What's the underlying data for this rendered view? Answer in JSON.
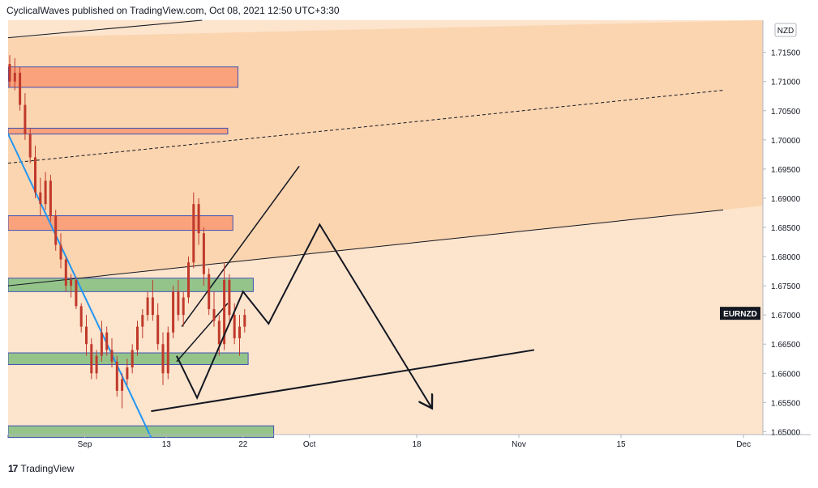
{
  "header": {
    "publisher_text": "CyclicalWaves published on TradingView.com, Oct 08, 2021 12:50 UTC+3:30"
  },
  "footer": {
    "logo": "17",
    "brand": "TradingView"
  },
  "chart_data": {
    "type": "candlestick",
    "symbol_badge": "EURNZD",
    "currency_badge": "NZD",
    "y_ticks": [
      "1.71500",
      "1.71000",
      "1.70500",
      "1.70000",
      "1.69500",
      "1.69000",
      "1.68500",
      "1.68000",
      "1.67500",
      "1.67000",
      "1.66500",
      "1.66000",
      "1.65500",
      "1.65000"
    ],
    "x_ticks": [
      "Sep",
      "13",
      "22",
      "Oct",
      "18",
      "Nov",
      "15",
      "Dec"
    ],
    "ylim": [
      1.6495,
      1.7205
    ],
    "colors": {
      "panel_bg": "#fde4cc",
      "upper_channel_bg": "#fbd3ad",
      "resistance_zone": "#f9a27c",
      "support_zone": "#95c48a",
      "zone_border": "#3f51b5",
      "candle": "#c0392b",
      "trendline_blue": "#2196f3",
      "line": "#131722"
    },
    "resistance_zones": [
      {
        "start_day": 0,
        "end_day": 45,
        "low": 1.709,
        "high": 1.7125
      },
      {
        "start_day": 0,
        "end_day": 43,
        "low": 1.701,
        "high": 1.702
      },
      {
        "start_day": 0,
        "end_day": 44,
        "low": 1.6845,
        "high": 1.687
      }
    ],
    "support_zones": [
      {
        "start_day": 0,
        "end_day": 48,
        "low": 1.674,
        "high": 1.6763
      },
      {
        "start_day": 0,
        "end_day": 47,
        "low": 1.6615,
        "high": 1.6635
      },
      {
        "start_day": 0,
        "end_day": 52,
        "low": 1.649,
        "high": 1.651
      }
    ],
    "candles": [
      [
        1.713,
        1.7145,
        1.709,
        1.71
      ],
      [
        1.71,
        1.714,
        1.7085,
        1.7115
      ],
      [
        1.7115,
        1.7125,
        1.705,
        1.706
      ],
      [
        1.706,
        1.708,
        1.7,
        1.701
      ],
      [
        1.701,
        1.702,
        1.696,
        1.697
      ],
      [
        1.697,
        1.699,
        1.69,
        1.691
      ],
      [
        1.691,
        1.6935,
        1.687,
        1.689
      ],
      [
        1.689,
        1.6945,
        1.688,
        1.693
      ],
      [
        1.693,
        1.694,
        1.686,
        1.687
      ],
      [
        1.687,
        1.688,
        1.681,
        1.682
      ],
      [
        1.682,
        1.684,
        1.678,
        1.6795
      ],
      [
        1.6795,
        1.68,
        1.674,
        1.675
      ],
      [
        1.675,
        1.677,
        1.673,
        1.676
      ],
      [
        1.676,
        1.6765,
        1.671,
        1.6715
      ],
      [
        1.6715,
        1.672,
        1.667,
        1.668
      ],
      [
        1.668,
        1.67,
        1.663,
        1.665
      ],
      [
        1.665,
        1.666,
        1.659,
        1.66
      ],
      [
        1.66,
        1.664,
        1.659,
        1.663
      ],
      [
        1.663,
        1.669,
        1.662,
        1.667
      ],
      [
        1.667,
        1.668,
        1.663,
        1.664
      ],
      [
        1.664,
        1.666,
        1.661,
        1.662
      ],
      [
        1.662,
        1.663,
        1.656,
        1.657
      ],
      [
        1.657,
        1.66,
        1.654,
        1.659
      ],
      [
        1.659,
        1.6625,
        1.658,
        1.661
      ],
      [
        1.661,
        1.665,
        1.66,
        1.664
      ],
      [
        1.664,
        1.669,
        1.663,
        1.668
      ],
      [
        1.668,
        1.671,
        1.666,
        1.67
      ],
      [
        1.67,
        1.674,
        1.669,
        1.673
      ],
      [
        1.673,
        1.676,
        1.669,
        1.67
      ],
      [
        1.67,
        1.672,
        1.664,
        1.665
      ],
      [
        1.665,
        1.667,
        1.658,
        1.66
      ],
      [
        1.66,
        1.668,
        1.659,
        1.667
      ],
      [
        1.667,
        1.675,
        1.666,
        1.674
      ],
      [
        1.674,
        1.676,
        1.669,
        1.67
      ],
      [
        1.67,
        1.674,
        1.668,
        1.673
      ],
      [
        1.673,
        1.68,
        1.672,
        1.679
      ],
      [
        1.679,
        1.691,
        1.678,
        1.689
      ],
      [
        1.689,
        1.69,
        1.682,
        1.684
      ],
      [
        1.684,
        1.685,
        1.675,
        1.677
      ],
      [
        1.677,
        1.678,
        1.67,
        1.671
      ],
      [
        1.671,
        1.674,
        1.668,
        1.669
      ],
      [
        1.669,
        1.67,
        1.663,
        1.665
      ],
      [
        1.665,
        1.679,
        1.664,
        1.676
      ],
      [
        1.676,
        1.677,
        1.669,
        1.67
      ],
      [
        1.67,
        1.672,
        1.665,
        1.666
      ],
      [
        1.666,
        1.67,
        1.663,
        1.668
      ],
      [
        1.668,
        1.671,
        1.667,
        1.67
      ]
    ],
    "lines": [
      {
        "name": "upper-channel-top",
        "style": "solid",
        "width": 1,
        "from": [
          0,
          1.7175
        ],
        "to": [
          38,
          1.7205
        ]
      },
      {
        "name": "mid-dashed-line",
        "style": "dashed",
        "width": 1,
        "from": [
          0,
          1.696
        ],
        "to": [
          140,
          1.7085
        ]
      },
      {
        "name": "channel-base-line",
        "style": "solid",
        "width": 1,
        "from": [
          0,
          1.675
        ],
        "to": [
          140,
          1.688
        ]
      },
      {
        "name": "descending-trendline",
        "style": "solid",
        "width": 2,
        "color": "blue",
        "from": [
          0,
          1.701
        ],
        "to": [
          28,
          1.649
        ]
      },
      {
        "name": "rising-support-line",
        "style": "solid",
        "width": 2,
        "from": [
          28,
          1.6535
        ],
        "to": [
          103,
          1.664
        ]
      },
      {
        "name": "rising-channel-upper",
        "style": "solid",
        "width": 1.5,
        "from": [
          34,
          1.668
        ],
        "to": [
          57,
          1.6955
        ]
      },
      {
        "name": "rising-channel-lower",
        "style": "solid",
        "width": 1.5,
        "from": [
          33,
          1.662
        ],
        "to": [
          43,
          1.672
        ]
      }
    ],
    "wave_path": [
      [
        33,
        1.663
      ],
      [
        37,
        1.6558
      ],
      [
        46,
        1.674
      ],
      [
        51,
        1.6685
      ],
      [
        61,
        1.6855
      ],
      [
        83,
        1.654
      ]
    ]
  }
}
